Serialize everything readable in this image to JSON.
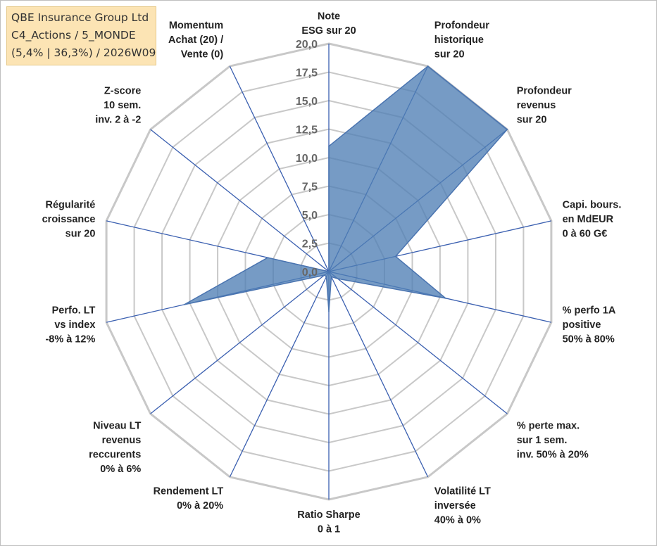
{
  "info": {
    "line1": "QBE Insurance Group Ltd",
    "line2": "C4_Actions / 5_MONDE",
    "line3": "(5,4% | 36,3%) / 2026W09"
  },
  "colors": {
    "fill": "#4f7fb5",
    "stroke": "#4a74b0",
    "spoke": "#3a5fb0",
    "grid": "#c8c8c8"
  },
  "chart_data": {
    "type": "radar",
    "title": "",
    "rmin": 0,
    "rmax": 20,
    "tick_values": [
      0,
      2.5,
      5,
      7.5,
      10,
      12.5,
      15,
      17.5,
      20
    ],
    "tick_labels": [
      "0,0",
      "2,5",
      "5,0",
      "7,5",
      "10,0",
      "12,5",
      "15,0",
      "17,5",
      "20,0"
    ],
    "axes": [
      {
        "name": "esg",
        "label": [
          "Note",
          "ESG sur 20"
        ],
        "value": 11
      },
      {
        "name": "profondeur-historique",
        "label": [
          "Profondeur",
          "historique",
          "sur 20"
        ],
        "value": 20
      },
      {
        "name": "profondeur-revenus",
        "label": [
          "Profondeur",
          "revenus",
          "sur 20"
        ],
        "value": 20
      },
      {
        "name": "capi-boursiere",
        "label": [
          "Capi. bours.",
          "en MdEUR",
          "0 à 60 G€"
        ],
        "value": 6
      },
      {
        "name": "perfo-1a-positive",
        "label": [
          "% perfo 1A",
          "positive",
          "50% à 80%"
        ],
        "value": 10.5
      },
      {
        "name": "perte-max",
        "label": [
          "% perte max.",
          "sur 1 sem.",
          "inv. 50% à 20%"
        ],
        "value": 1
      },
      {
        "name": "volatilite-lt",
        "label": [
          "Volatilité LT",
          "inversée",
          "40% à 0%"
        ],
        "value": 0.5
      },
      {
        "name": "ratio-sharpe",
        "label": [
          "Ratio Sharpe",
          "0 à 1"
        ],
        "value": 3.5
      },
      {
        "name": "rendement-lt",
        "label": [
          "Rendement LT",
          "0% à 20%"
        ],
        "value": 0.5
      },
      {
        "name": "niveau-lt-revenus",
        "label": [
          "Niveau LT",
          "revenus",
          "reccurents",
          "0% à 6%"
        ],
        "value": 0.5
      },
      {
        "name": "perfo-lt-vs-index",
        "label": [
          "Perfo. LT",
          "vs index",
          "-8% à 12%"
        ],
        "value": 13
      },
      {
        "name": "regularite-croissance",
        "label": [
          "Régularité",
          "croissance",
          "sur 20"
        ],
        "value": 5.5
      },
      {
        "name": "z-score",
        "label": [
          "Z-score",
          "10 sem.",
          "inv. 2 à -2"
        ],
        "value": 0
      },
      {
        "name": "momentum",
        "label": [
          "Momentum",
          "Achat (20) /",
          "Vente (0)"
        ],
        "value": 0
      }
    ]
  }
}
